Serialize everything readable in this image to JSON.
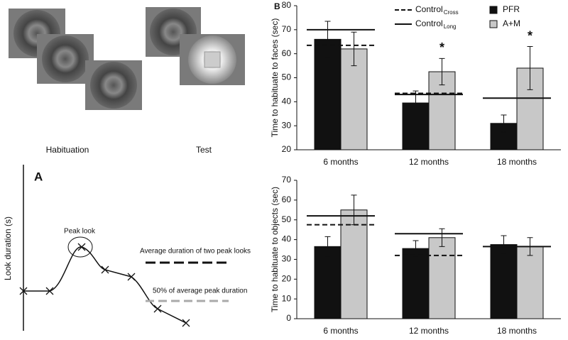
{
  "figure": {
    "stimuli_labels": [
      "Habituation",
      "Test"
    ],
    "diagram": {
      "panel_label": "A",
      "y_label": "Look duration (s)",
      "peak_label": "Peak look",
      "lines": [
        "Average duration of two peak looks",
        "50% of average peak duration"
      ]
    }
  },
  "chart_data": [
    {
      "type": "bar",
      "panel_label": "B",
      "y_label": "Time to habituate to faces (sec)",
      "categories": [
        "6 months",
        "12 months",
        "18 months"
      ],
      "ylim": [
        20,
        80
      ],
      "yticks": [
        20,
        30,
        40,
        50,
        60,
        70,
        80
      ],
      "legend": true,
      "significance": [
        null,
        "*",
        "*"
      ],
      "series": [
        {
          "name": "PFR",
          "color": "#111111",
          "values": [
            66,
            39.5,
            31
          ],
          "errors": [
            7.5,
            5,
            3.5
          ]
        },
        {
          "name": "A+M",
          "color": "#c8c8c8",
          "values": [
            62,
            52.5,
            54
          ],
          "errors": [
            7,
            5.5,
            9
          ]
        },
        {
          "name": "Control",
          "subscript": "Cross",
          "style": "dashed",
          "color": "#111111",
          "values": [
            63.5,
            43.5,
            null
          ]
        },
        {
          "name": "Control",
          "subscript": "Long",
          "style": "solid",
          "color": "#111111",
          "values": [
            70,
            43,
            41.5
          ]
        }
      ]
    },
    {
      "type": "bar",
      "y_label": "Time to habituate to objects (sec)",
      "categories": [
        "6 months",
        "12 months",
        "18 months"
      ],
      "ylim": [
        0,
        70
      ],
      "yticks": [
        0,
        10,
        20,
        30,
        40,
        50,
        60,
        70
      ],
      "legend": false,
      "series": [
        {
          "color": "#111111",
          "values": [
            36.5,
            35.5,
            37.5
          ],
          "errors": [
            5,
            4,
            4.5
          ]
        },
        {
          "color": "#c8c8c8",
          "values": [
            55,
            41,
            36.5
          ],
          "errors": [
            7.5,
            4.5,
            4.5
          ]
        },
        {
          "style": "dashed",
          "color": "#111111",
          "values": [
            47.5,
            32,
            null
          ]
        },
        {
          "style": "solid",
          "color": "#111111",
          "values": [
            52,
            43,
            36.5
          ]
        }
      ]
    }
  ]
}
